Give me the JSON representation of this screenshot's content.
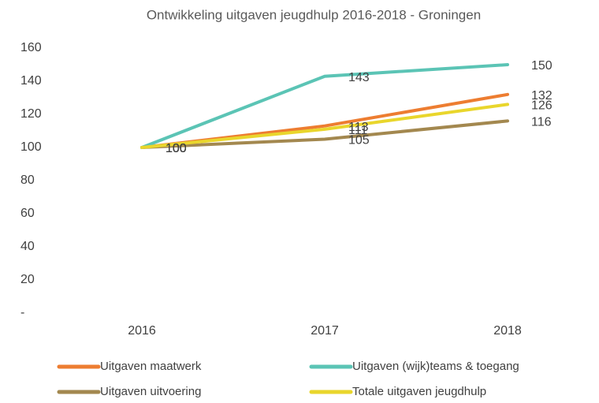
{
  "chart_data": {
    "type": "line",
    "title": "Ontwikkeling uitgaven jeugdhulp 2016-2018 - Groningen",
    "categories": [
      "2016",
      "2017",
      "2018"
    ],
    "series": [
      {
        "name": "Uitgaven maatwerk",
        "color": "#ED7D31",
        "values": [
          100,
          113,
          132
        ]
      },
      {
        "name": "Uitgaven (wijk)teams & toegang",
        "color": "#5BC4B5",
        "values": [
          100,
          143,
          150
        ]
      },
      {
        "name": "Uitgaven uitvoering",
        "color": "#A3884F",
        "values": [
          100,
          105,
          116
        ]
      },
      {
        "name": "Totale uitgaven jeugdhulp",
        "color": "#E9D62C",
        "values": [
          100,
          111,
          126
        ]
      }
    ],
    "ylim": [
      0,
      160
    ],
    "yticks": [
      {
        "value": 0,
        "label": "-"
      },
      20,
      40,
      60,
      80,
      100,
      120,
      140,
      160
    ],
    "legend": "bottom"
  }
}
